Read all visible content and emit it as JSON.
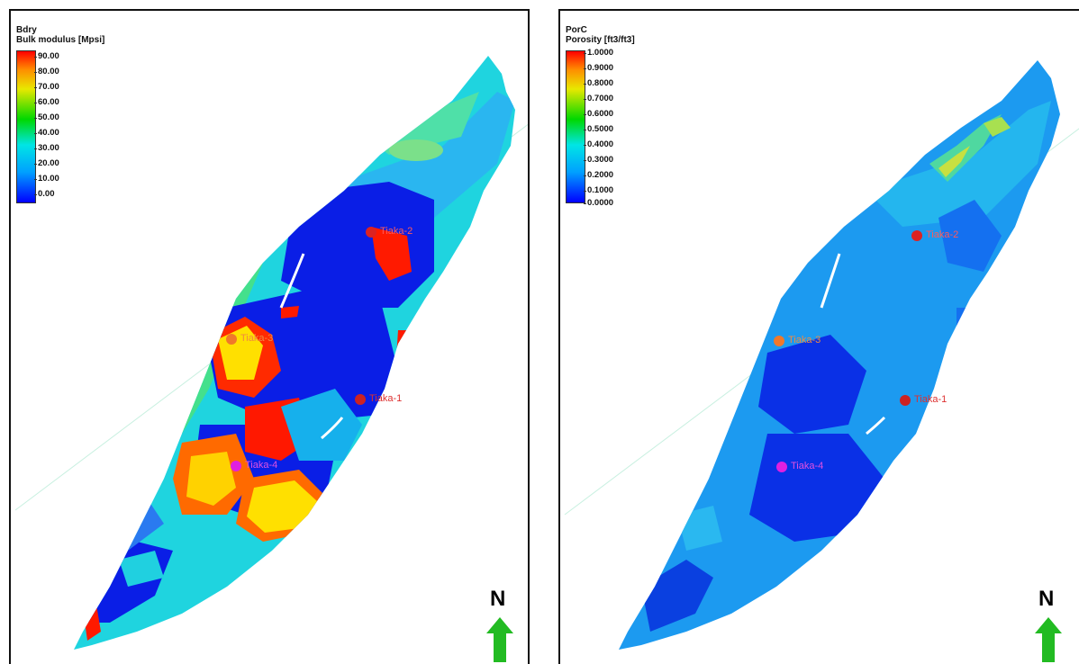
{
  "panels": [
    {
      "legend": {
        "title": "Bdry",
        "subtitle": "Bulk modulus [Mpsi]",
        "ticks": [
          "90.00",
          "80.00",
          "70.00",
          "60.00",
          "50.00",
          "40.00",
          "30.00",
          "20.00",
          "10.00",
          "0.00"
        ]
      },
      "wells": [
        {
          "name": "Tiaka-2",
          "color": "#dd2222"
        },
        {
          "name": "Tiaka-3",
          "color": "#f0782a"
        },
        {
          "name": "Tiaka-1",
          "color": "#cc2222"
        },
        {
          "name": "Tiaka-4",
          "color": "#e020e0"
        }
      ],
      "north_label": "N"
    },
    {
      "legend": {
        "title": "PorC",
        "subtitle": "Porosity [ft3/ft3]",
        "ticks": [
          "1.0000",
          "0.9000",
          "0.8000",
          "0.7000",
          "0.6000",
          "0.5000",
          "0.4000",
          "0.3000",
          "0.2000",
          "0.1000",
          "0.0000"
        ]
      },
      "wells": [
        {
          "name": "Tiaka-2",
          "color": "#dd2222"
        },
        {
          "name": "Tiaka-3",
          "color": "#f0782a"
        },
        {
          "name": "Tiaka-1",
          "color": "#cc2222"
        },
        {
          "name": "Tiaka-4",
          "color": "#e020e0"
        }
      ],
      "north_label": "N"
    }
  ],
  "colors": {
    "colorscale": [
      "#0000ff",
      "#00a0ff",
      "#00e5e5",
      "#00d800",
      "#e8e800",
      "#ff8c00",
      "#ff0000"
    ],
    "arrow": "#22bb22"
  }
}
